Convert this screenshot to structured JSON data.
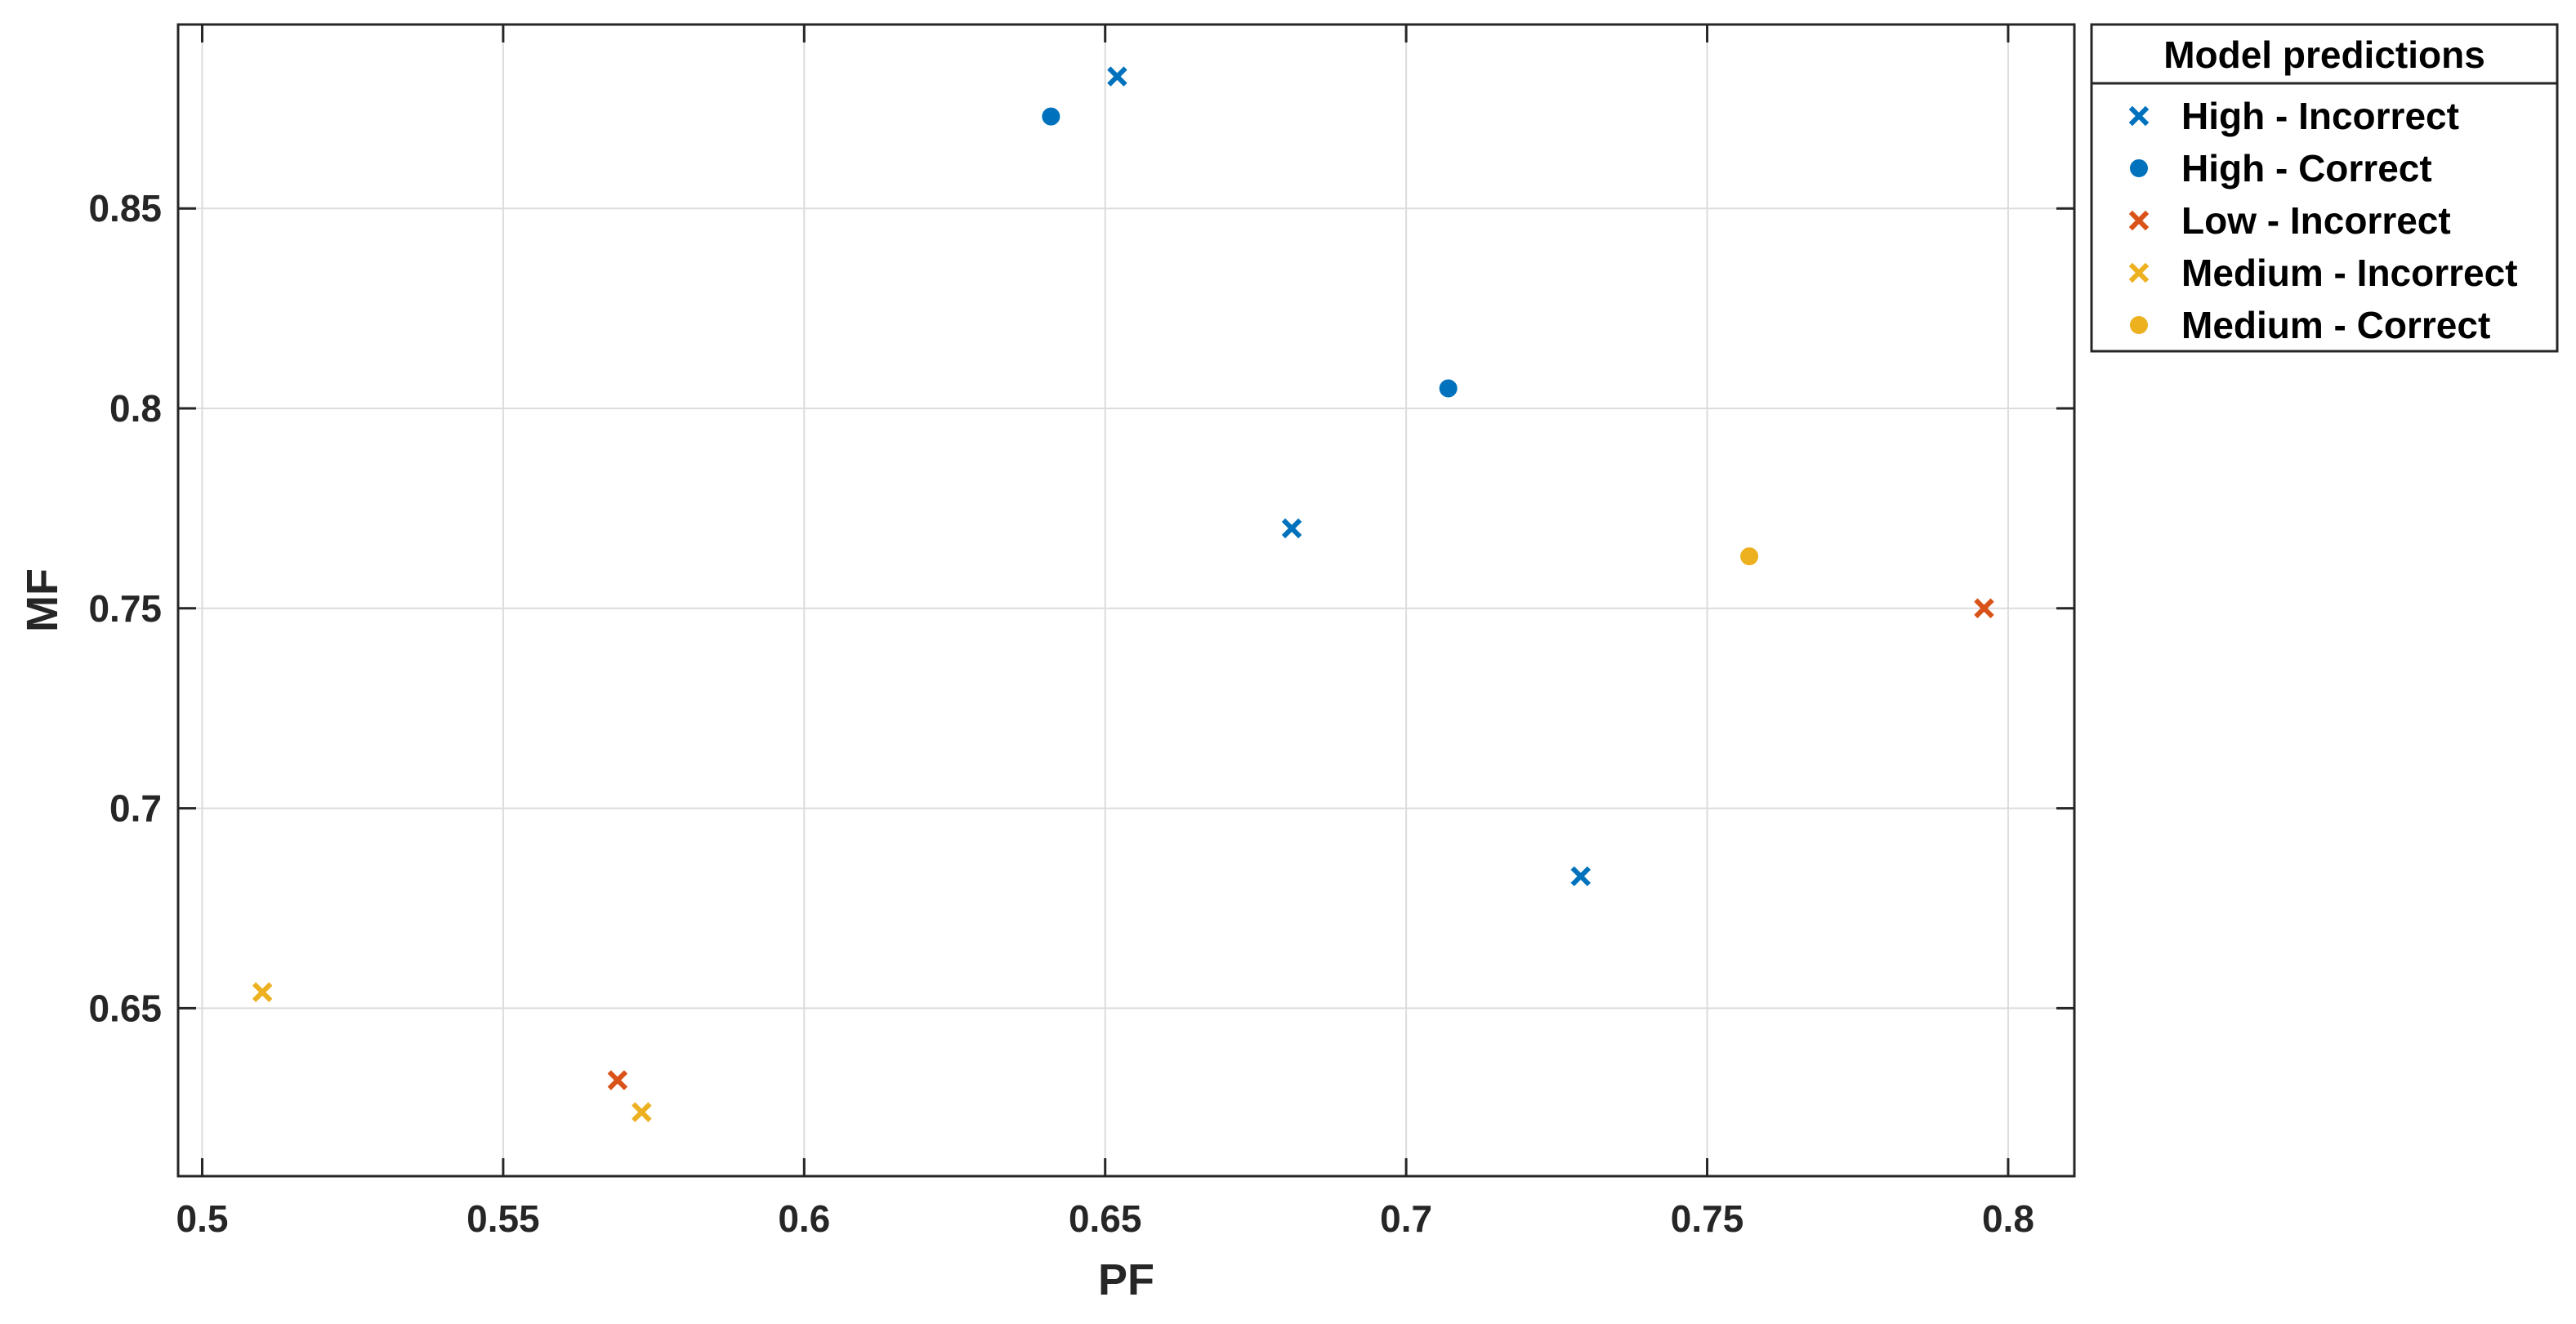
{
  "chart_data": {
    "type": "scatter",
    "title": "",
    "xlabel": "PF",
    "ylabel": "MF",
    "xlim": [
      0.496,
      0.811
    ],
    "ylim": [
      0.608,
      0.896
    ],
    "x_ticks": [
      0.5,
      0.55,
      0.6,
      0.65,
      0.7,
      0.75,
      0.8
    ],
    "x_tick_labels": [
      "0.5",
      "0.55",
      "0.6",
      "0.65",
      "0.7",
      "0.75",
      "0.8"
    ],
    "y_ticks": [
      0.65,
      0.7,
      0.75,
      0.8,
      0.85
    ],
    "y_tick_labels": [
      "0.65",
      "0.7",
      "0.75",
      "0.8",
      "0.85"
    ],
    "grid": true,
    "legend": {
      "title": "Model predictions",
      "placement": "outside-top-right"
    },
    "series": [
      {
        "name": "High - Incorrect",
        "color": "#0072BD",
        "marker": "x",
        "points": [
          {
            "x": 0.652,
            "y": 0.883
          },
          {
            "x": 0.681,
            "y": 0.77
          },
          {
            "x": 0.729,
            "y": 0.683
          }
        ]
      },
      {
        "name": "High - Correct",
        "color": "#0072BD",
        "marker": "circle",
        "points": [
          {
            "x": 0.641,
            "y": 0.873
          },
          {
            "x": 0.707,
            "y": 0.805
          }
        ]
      },
      {
        "name": "Low - Incorrect",
        "color": "#D95319",
        "marker": "x",
        "points": [
          {
            "x": 0.796,
            "y": 0.75
          },
          {
            "x": 0.569,
            "y": 0.632
          }
        ]
      },
      {
        "name": "Medium - Incorrect",
        "color": "#EDB120",
        "marker": "x",
        "points": [
          {
            "x": 0.51,
            "y": 0.654
          },
          {
            "x": 0.573,
            "y": 0.624
          }
        ]
      },
      {
        "name": "Medium - Correct",
        "color": "#EDB120",
        "marker": "circle",
        "points": [
          {
            "x": 0.757,
            "y": 0.763
          }
        ]
      }
    ]
  }
}
